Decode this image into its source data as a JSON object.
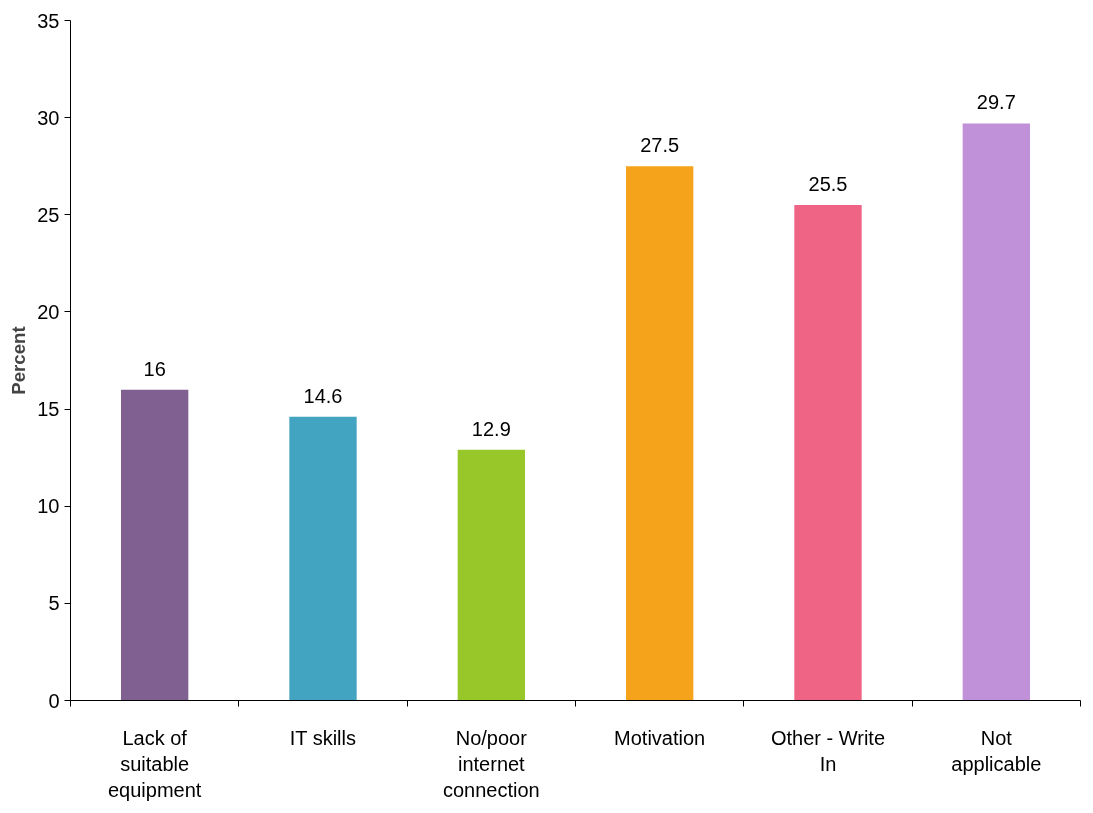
{
  "chart_data": {
    "type": "bar",
    "ylabel": "Percent",
    "categories": [
      "Lack of suitable equipment",
      "IT skills",
      "No/poor internet connection",
      "Motivation",
      "Other - Write In",
      "Not applicable"
    ],
    "values": [
      16,
      14.6,
      12.9,
      27.5,
      25.5,
      29.7
    ],
    "colors": [
      "#7f6090",
      "#42a4c1",
      "#98c72a",
      "#f4a31b",
      "#ef6484",
      "#c090d8"
    ],
    "ylim": [
      0,
      35
    ],
    "yticks": [
      0,
      5,
      10,
      15,
      20,
      25,
      30,
      35
    ],
    "grid": false,
    "data_labels": true
  }
}
